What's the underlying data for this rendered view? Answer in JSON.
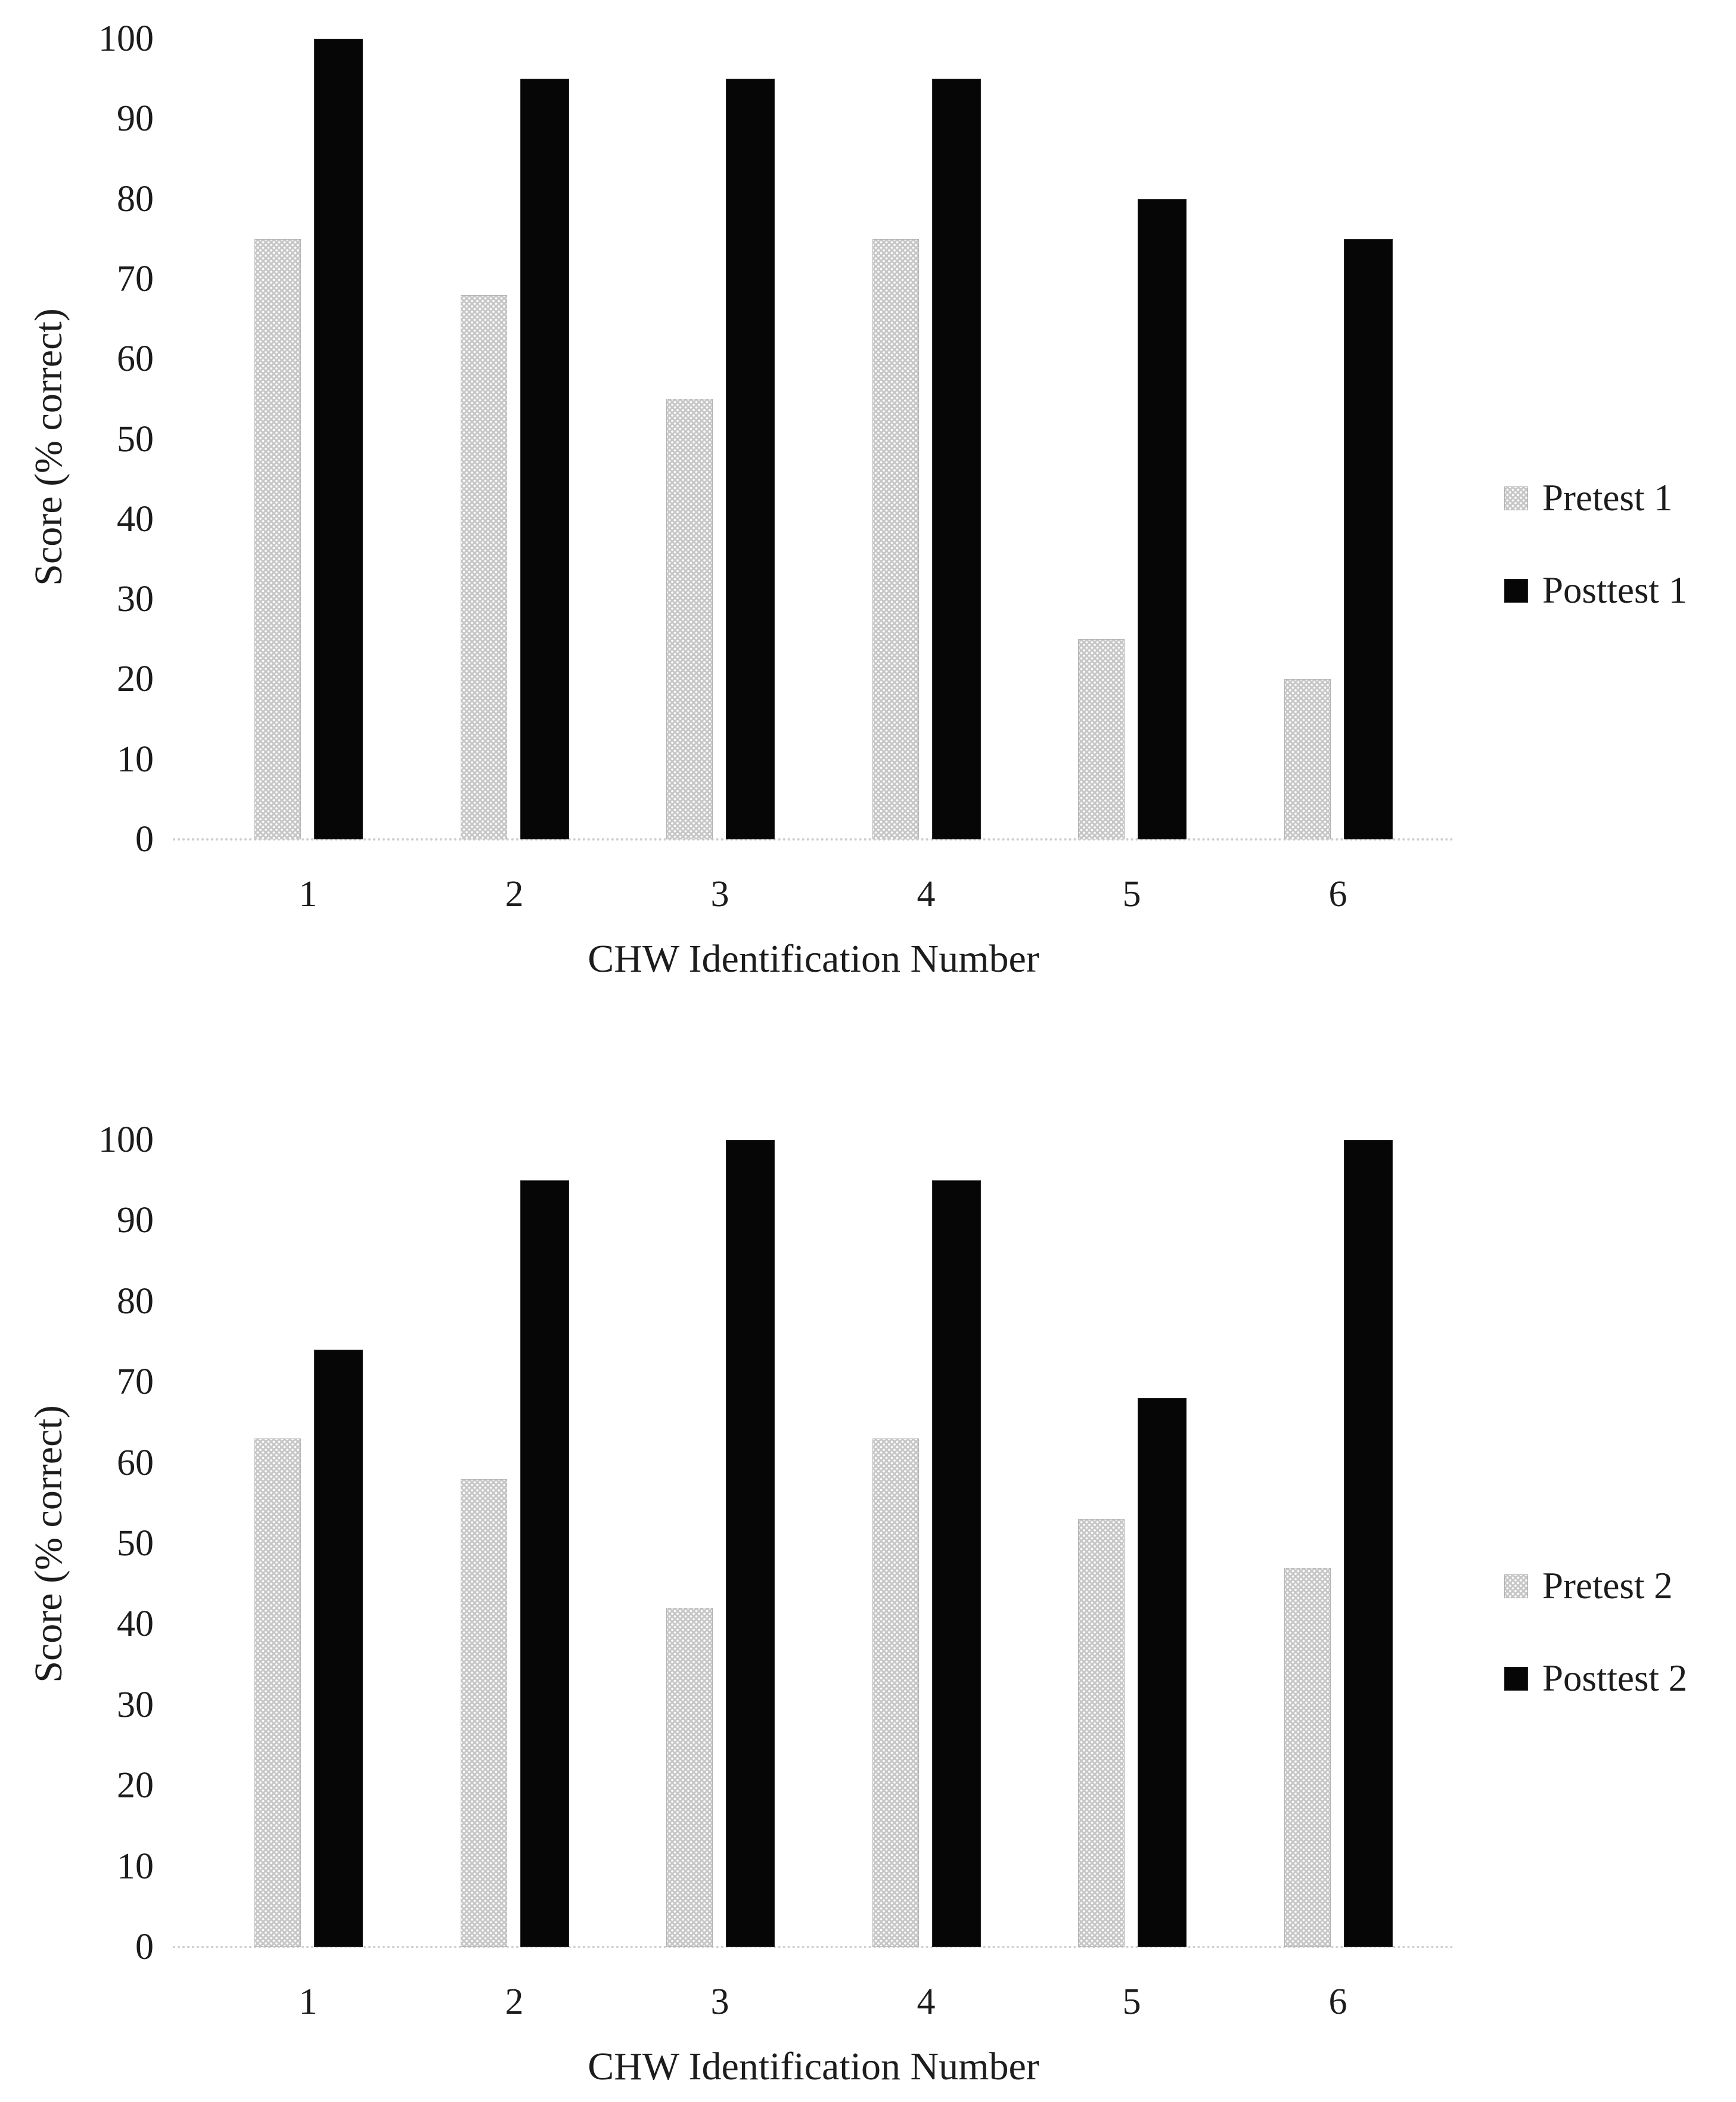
{
  "page": {
    "background": "#ffffff"
  },
  "colors": {
    "pretest_fill": "#c7c7c7",
    "pretest_dot": "#ffffff",
    "posttest_fill": "#060606",
    "axis_line": "#cfcfcf",
    "text": "#1c1c1c"
  },
  "chart_data": [
    {
      "type": "bar",
      "title": "",
      "categories": [
        "1",
        "2",
        "3",
        "4",
        "5",
        "6"
      ],
      "series": [
        {
          "name": "Pretest 1",
          "values": [
            75,
            68,
            55,
            75,
            25,
            20
          ],
          "style": "pretest"
        },
        {
          "name": "Posttest 1",
          "values": [
            100,
            95,
            95,
            95,
            80,
            75
          ],
          "style": "posttest"
        }
      ],
      "xlabel": "CHW Identification Number",
      "ylabel": "Score (% correct)",
      "ylim": [
        0,
        100
      ],
      "yticks": [
        0,
        10,
        20,
        30,
        40,
        50,
        60,
        70,
        80,
        90,
        100
      ],
      "grid": false,
      "legend_position": "right"
    },
    {
      "type": "bar",
      "title": "",
      "categories": [
        "1",
        "2",
        "3",
        "4",
        "5",
        "6"
      ],
      "series": [
        {
          "name": "Pretest 2",
          "values": [
            63,
            58,
            42,
            63,
            53,
            47
          ],
          "style": "pretest"
        },
        {
          "name": "Posttest 2",
          "values": [
            74,
            95,
            100,
            95,
            68,
            100
          ],
          "style": "posttest"
        }
      ],
      "xlabel": "CHW Identification Number",
      "ylabel": "Score (% correct)",
      "ylim": [
        0,
        100
      ],
      "yticks": [
        0,
        10,
        20,
        30,
        40,
        50,
        60,
        70,
        80,
        90,
        100
      ],
      "grid": false,
      "legend_position": "right"
    }
  ]
}
